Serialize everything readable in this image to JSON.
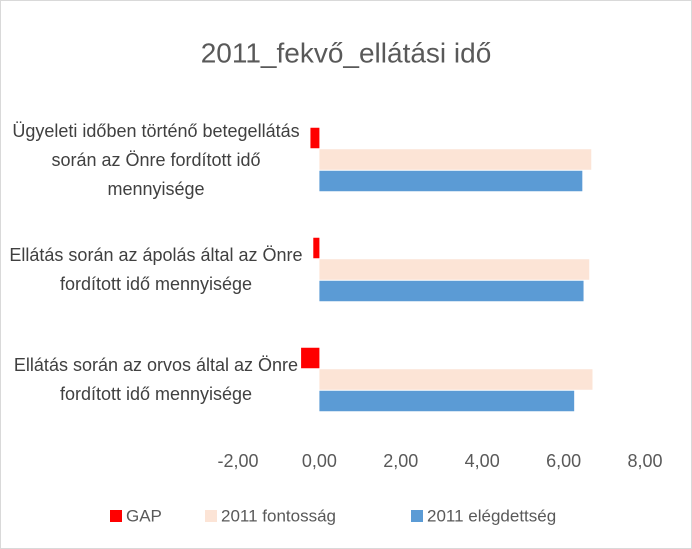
{
  "chart_data": {
    "type": "hbar",
    "title": "2011_fekvő_ellátási idő",
    "categories": [
      "Ügyeleti időben történő betegellátás során az Önre fordított idő mennyisége",
      "Ellátás során az ápolás által az Önre fordított idő mennyisége",
      "Ellátás során az orvos által az Önre fordított idő mennyisége"
    ],
    "series": [
      {
        "name": "GAP",
        "color": "#ff0000",
        "values": [
          -0.22,
          -0.15,
          -0.45
        ]
      },
      {
        "name": "2011 fontosság",
        "color": "#fce4d6",
        "values": [
          6.68,
          6.63,
          6.71
        ]
      },
      {
        "name": "2011 elégdettség",
        "color": "#5b9bd5",
        "values": [
          6.46,
          6.49,
          6.26
        ]
      }
    ],
    "xlim": [
      -2,
      8
    ],
    "xticks": [
      {
        "value": -2,
        "label": "-2,00"
      },
      {
        "value": 0,
        "label": "0,00"
      },
      {
        "value": 2,
        "label": "2,00"
      },
      {
        "value": 4,
        "label": "4,00"
      },
      {
        "value": 6,
        "label": "6,00"
      },
      {
        "value": 8,
        "label": "8,00"
      }
    ],
    "grid": false,
    "legend": "bottom"
  }
}
